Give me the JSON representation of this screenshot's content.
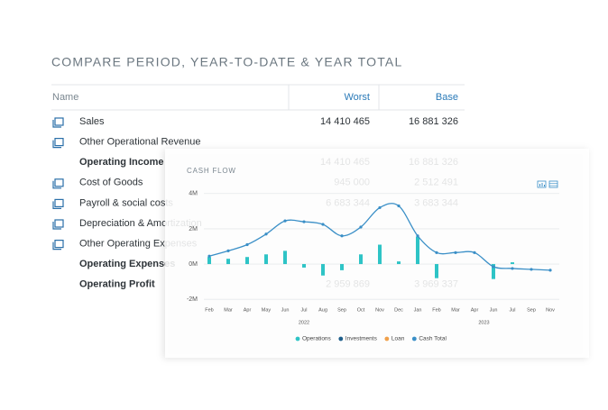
{
  "title": "COMPARE PERIOD, YEAR-TO-DATE & YEAR TOTAL",
  "table": {
    "columns": [
      "Name",
      "Worst",
      "Base"
    ],
    "rows": [
      {
        "name": "Sales",
        "icon": true,
        "worst": "14 410 465",
        "base": "16 881 326"
      },
      {
        "name": "Other Operational Revenue",
        "icon": true
      },
      {
        "name": "Operating Income",
        "bold": true,
        "worst": "14 410 465",
        "base": "16 881 326"
      },
      {
        "name": "Cost of Goods",
        "icon": true,
        "worst": "945 000",
        "base": "2 512 491"
      },
      {
        "name": "Payroll & social costs",
        "icon": true,
        "worst": "6 683 344",
        "base": "3 683 344"
      },
      {
        "name": "Depreciation & Amortization",
        "icon": true
      },
      {
        "name": "Other Operating Expenses",
        "icon": true
      },
      {
        "name": "Operating Expenses",
        "bold": true
      },
      {
        "name": "Operating Profit",
        "bold": true,
        "worst": "2 959 869",
        "base": "3 969 337"
      }
    ]
  },
  "chart_data": {
    "type": "combo",
    "title": "CASH FLOW",
    "categories": [
      "Feb",
      "Mar",
      "Apr",
      "May",
      "Jun",
      "Jul",
      "Aug",
      "Sep",
      "Oct",
      "Nov",
      "Dec",
      "Jan",
      "Feb",
      "Mar",
      "Apr",
      "Jun",
      "Jul",
      "Sep",
      "Nov"
    ],
    "x_groups": [
      {
        "label": "2022",
        "from": 0,
        "to": 10
      },
      {
        "label": "2023",
        "from": 11,
        "to": 18
      }
    ],
    "ylim": [
      -2.4,
      4.5
    ],
    "yticks": [
      {
        "value": 4,
        "label": "4M"
      },
      {
        "value": 2,
        "label": "2M"
      },
      {
        "value": 0,
        "label": "0M"
      },
      {
        "value": -2,
        "label": "-2M"
      }
    ],
    "grid": true,
    "legend": "bottom",
    "series": [
      {
        "name": "Operations",
        "type": "bar",
        "color": "#2ec4c6",
        "values": [
          0.4,
          0.3,
          0.4,
          0.55,
          0.75,
          -0.2,
          -0.65,
          -0.35,
          0.55,
          1.1,
          0.15,
          1.55,
          -0.8,
          null,
          null,
          -0.85,
          0.1,
          null,
          null
        ]
      },
      {
        "name": "Investments",
        "type": "bar",
        "color": "#1f5f8b",
        "values": [
          null,
          null,
          null,
          null,
          null,
          null,
          null,
          null,
          null,
          null,
          null,
          null,
          null,
          null,
          null,
          null,
          null,
          null,
          null
        ]
      },
      {
        "name": "Loan",
        "type": "bar",
        "color": "#f0a04b",
        "values": [
          null,
          null,
          null,
          null,
          null,
          null,
          null,
          null,
          null,
          null,
          null,
          null,
          null,
          null,
          null,
          null,
          null,
          null,
          null
        ]
      },
      {
        "name": "Cash Total",
        "type": "line",
        "color": "#3a8fc7",
        "values": [
          0.45,
          0.75,
          1.1,
          1.7,
          2.45,
          2.4,
          2.25,
          1.6,
          2.1,
          3.2,
          3.3,
          1.6,
          0.65,
          0.65,
          0.65,
          -0.15,
          -0.25,
          -0.3,
          -0.35
        ]
      }
    ]
  }
}
